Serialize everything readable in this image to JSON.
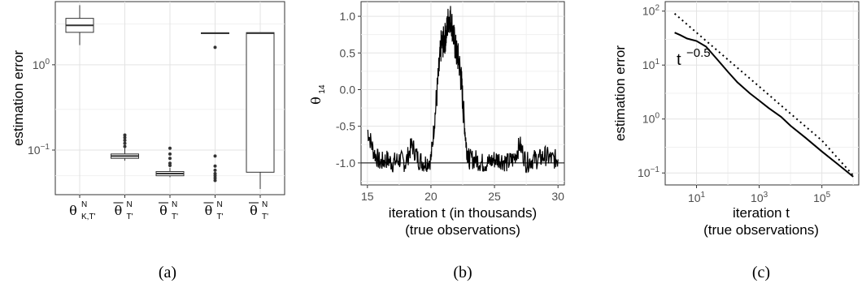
{
  "chart_data": [
    {
      "type": "box",
      "caption": "(a)",
      "ylabel": "estimation error",
      "yscale": "log",
      "ylim": [
        0.03,
        5.5
      ],
      "yticks": [
        {
          "v": 0.1,
          "b": "10",
          "e": "−1"
        },
        {
          "v": 1,
          "b": "10",
          "e": "0"
        }
      ],
      "categories": [
        {
          "sym": "θ",
          "bar": false,
          "sup": "N",
          "sub": "K,T'"
        },
        {
          "sym": "θ",
          "bar": true,
          "sup": "N",
          "sub": "T'"
        },
        {
          "sym": "θ",
          "bar": true,
          "sup": "N",
          "sub": "T'"
        },
        {
          "sym": "θ",
          "bar": true,
          "sup": "N",
          "sub": "T'"
        },
        {
          "sym": "θ",
          "bar": true,
          "sup": "N",
          "sub": "T'"
        }
      ],
      "boxes": [
        {
          "wmin": 1.7,
          "q1": 2.4,
          "med": 2.9,
          "q3": 3.5,
          "wmax": 5.0,
          "outliers": []
        },
        {
          "wmin": 0.075,
          "q1": 0.08,
          "med": 0.085,
          "q3": 0.09,
          "wmax": 0.105,
          "outliers": [
            0.11,
            0.12,
            0.13,
            0.14,
            0.15
          ]
        },
        {
          "wmin": 0.048,
          "q1": 0.05,
          "med": 0.053,
          "q3": 0.056,
          "wmax": 0.062,
          "outliers": [
            0.066,
            0.07,
            0.08,
            0.09,
            0.105
          ]
        },
        {
          "wmin": 2.3,
          "q1": 2.33,
          "med": 2.35,
          "q3": 2.37,
          "wmax": 2.4,
          "outliers": [
            1.6,
            0.085,
            0.065,
            0.058,
            0.053,
            0.05,
            0.047,
            0.044
          ]
        },
        {
          "wmin": 0.035,
          "q1": 0.055,
          "med": 2.35,
          "q3": 2.38,
          "wmax": 2.38,
          "outliers": []
        }
      ]
    },
    {
      "type": "line",
      "caption": "(b)",
      "ylabel_sym": "θ",
      "ylabel_sub": "14",
      "xlabel": "iteration t (in thousands)",
      "xlabel2": "(true observations)",
      "xlim": [
        14.5,
        30.5
      ],
      "ylim": [
        -1.3,
        1.2
      ],
      "xticks": [
        "15",
        "20",
        "25",
        "30"
      ],
      "yticks": [
        "-1.0",
        "-0.5",
        "0.0",
        "0.5",
        "1.0"
      ],
      "hline": -1.0,
      "series": [
        {
          "x": [
            15,
            15.5,
            16,
            16.5,
            17,
            17.5,
            18,
            18.5,
            19,
            19.5,
            20,
            20.3,
            20.6,
            20.8,
            21,
            21.2,
            21.4,
            21.6,
            21.8,
            22,
            22.2,
            22.4,
            22.6,
            22.8,
            23,
            23.5,
            24,
            24.5,
            25,
            25.5,
            26,
            26.5,
            27,
            27.5,
            28,
            28.5,
            29,
            29.5,
            30
          ],
          "y": [
            -0.55,
            -0.85,
            -1.0,
            -0.95,
            -1.0,
            -0.95,
            -1.0,
            -0.75,
            -0.95,
            -1.0,
            -0.95,
            -0.4,
            0.2,
            0.6,
            0.65,
            0.75,
            1.0,
            0.95,
            0.7,
            0.5,
            0.4,
            0.1,
            -0.4,
            -0.8,
            -0.95,
            -0.95,
            -1.0,
            -1.0,
            -0.95,
            -0.95,
            -1.0,
            -0.95,
            -0.75,
            -1.0,
            -0.95,
            -0.95,
            -0.9,
            -0.95,
            -0.95
          ]
        }
      ]
    },
    {
      "type": "line",
      "caption": "(c)",
      "ylabel": "estimation error",
      "xlabel": "iteration t",
      "xlabel2": "(true observations)",
      "xscale": "log",
      "yscale": "log",
      "xlim": [
        1,
        1500000
      ],
      "ylim": [
        0.06,
        150
      ],
      "xticks": [
        {
          "v": 10,
          "b": "10",
          "e": "1"
        },
        {
          "v": 1000,
          "b": "10",
          "e": "3"
        },
        {
          "v": 100000,
          "b": "10",
          "e": "5"
        }
      ],
      "yticks": [
        {
          "v": 0.1,
          "b": "10",
          "e": "−1"
        },
        {
          "v": 1,
          "b": "10",
          "e": "0"
        },
        {
          "v": 10,
          "b": "10",
          "e": "1"
        },
        {
          "v": 100,
          "b": "10",
          "e": "2"
        }
      ],
      "annotation": {
        "base": "t",
        "exp": "−0.5"
      },
      "series": [
        {
          "style": "solid",
          "x": [
            2,
            3,
            5,
            10,
            20,
            50,
            100,
            200,
            500,
            1000,
            2000,
            5000,
            10000,
            30000,
            100000,
            300000,
            1000000
          ],
          "y": [
            40,
            36,
            31,
            28,
            22,
            12,
            7.5,
            4.8,
            3.0,
            2.2,
            1.6,
            1.1,
            0.75,
            0.45,
            0.25,
            0.15,
            0.085
          ]
        },
        {
          "style": "dotted",
          "x": [
            2,
            10,
            100,
            1000,
            10000,
            100000,
            1000000
          ],
          "y": [
            90,
            40,
            12.6,
            4.0,
            1.26,
            0.4,
            0.09
          ]
        }
      ]
    }
  ]
}
